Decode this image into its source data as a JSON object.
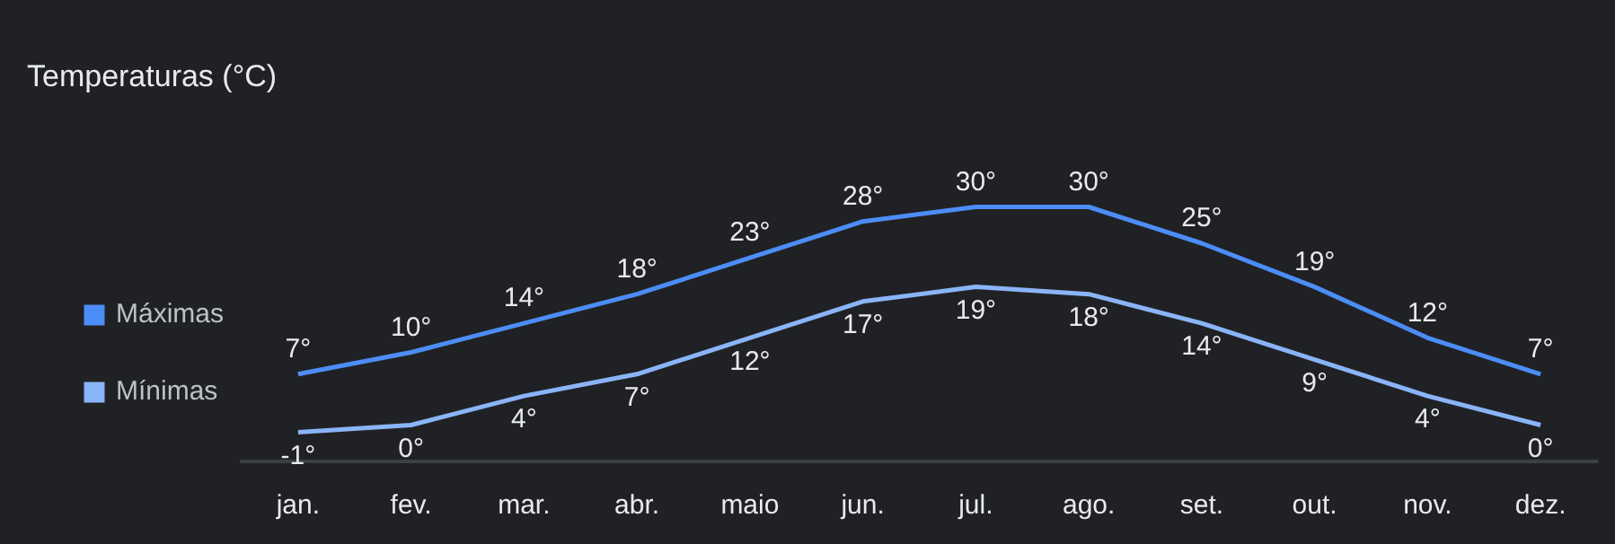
{
  "chart_data": {
    "type": "line",
    "title": "Temperaturas (°C)",
    "categories": [
      "jan.",
      "fev.",
      "mar.",
      "abr.",
      "maio",
      "jun.",
      "jul.",
      "ago.",
      "set.",
      "out.",
      "nov.",
      "dez."
    ],
    "series": [
      {
        "name": "Máximas",
        "color": "#4c8df6",
        "values": [
          7,
          10,
          14,
          18,
          23,
          28,
          30,
          30,
          25,
          19,
          12,
          7
        ],
        "value_labels": [
          "7°",
          "10°",
          "14°",
          "18°",
          "23°",
          "28°",
          "30°",
          "30°",
          "25°",
          "19°",
          "12°",
          "7°"
        ]
      },
      {
        "name": "Mínimas",
        "color": "#8ab4f8",
        "values": [
          -1,
          0,
          4,
          7,
          12,
          17,
          19,
          18,
          14,
          9,
          4,
          0
        ],
        "value_labels": [
          "-1°",
          "0°",
          "4°",
          "7°",
          "12°",
          "17°",
          "19°",
          "18°",
          "14°",
          "9°",
          "4°",
          "0°"
        ]
      }
    ],
    "legend": "left",
    "grid": false,
    "tick_labels": "x",
    "marker": "none",
    "line_style": "solid"
  }
}
